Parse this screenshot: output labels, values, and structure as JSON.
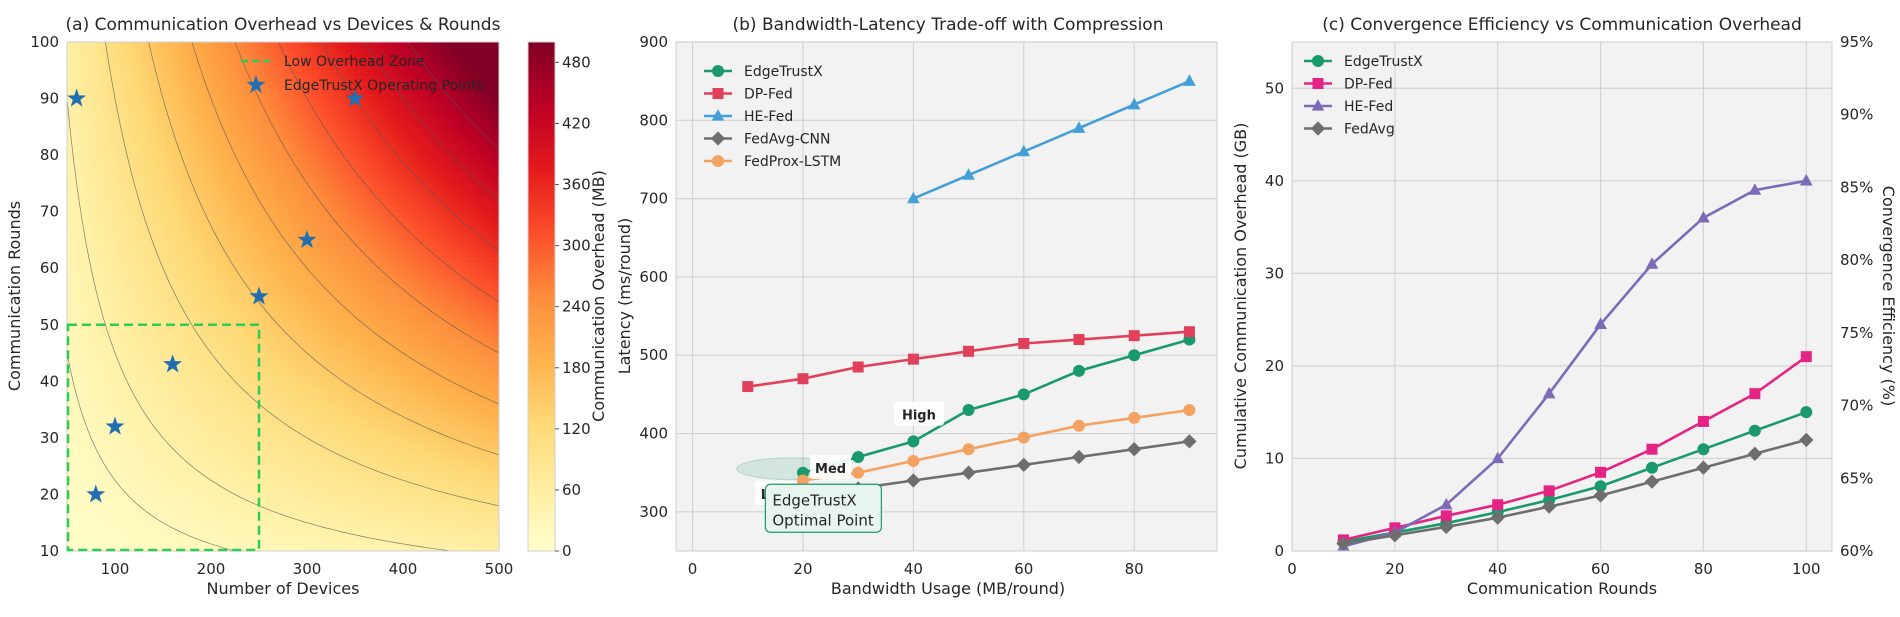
{
  "chart_data": [
    {
      "type": "heatmap",
      "title": "(a) Communication Overhead vs Devices & Rounds",
      "xlabel": "Number of Devices",
      "ylabel": "Communication Rounds",
      "xlim": [
        50,
        500
      ],
      "ylim": [
        10,
        100
      ],
      "xticks": [
        100,
        200,
        300,
        400,
        500
      ],
      "yticks": [
        10,
        20,
        30,
        40,
        50,
        60,
        70,
        80,
        90,
        100
      ],
      "colorbar": {
        "label": "Communication Overhead (MB)",
        "range": [
          0,
          500
        ],
        "ticks": [
          0,
          60,
          120,
          180,
          240,
          300,
          360,
          420,
          480
        ],
        "colormap": "YlOrRd"
      },
      "contour_levels": [
        25,
        50,
        100,
        150,
        200,
        250,
        300,
        350,
        400,
        450
      ],
      "low_overhead_zone": {
        "label": "Low Overhead Zone",
        "x": [
          50,
          250
        ],
        "y": [
          10,
          50
        ],
        "color": "#2ecc55"
      },
      "operating_points": {
        "label": "EdgeTrustX Operating Points",
        "color": "#1f6fb2",
        "points": [
          [
            60,
            90
          ],
          [
            80,
            20
          ],
          [
            100,
            32
          ],
          [
            160,
            43
          ],
          [
            250,
            55
          ],
          [
            300,
            65
          ],
          [
            350,
            90
          ]
        ]
      },
      "grid": true,
      "legend_position": "top-right"
    },
    {
      "type": "line",
      "title": "(b) Bandwidth-Latency Trade-off with Compression",
      "xlabel": "Bandwidth Usage (MB/round)",
      "ylabel": "Latency (ms/round)",
      "xlim": [
        -3,
        95
      ],
      "ylim": [
        250,
        900
      ],
      "xticks": [
        0,
        20,
        40,
        60,
        80
      ],
      "yticks": [
        300,
        400,
        500,
        600,
        700,
        800,
        900
      ],
      "series": [
        {
          "name": "EdgeTrustX",
          "color": "#1a9a6c",
          "marker": "circle",
          "x": [
            20,
            30,
            40,
            50,
            60,
            70,
            80,
            90
          ],
          "y": [
            350,
            370,
            390,
            430,
            450,
            480,
            500,
            520
          ]
        },
        {
          "name": "DP-Fed",
          "color": "#e0405a",
          "marker": "square",
          "x": [
            10,
            20,
            30,
            40,
            50,
            60,
            70,
            80,
            90
          ],
          "y": [
            460,
            470,
            485,
            495,
            505,
            515,
            520,
            525,
            530
          ]
        },
        {
          "name": "HE-Fed",
          "color": "#449fd8",
          "marker": "triangle",
          "x": [
            40,
            50,
            60,
            70,
            80,
            90
          ],
          "y": [
            700,
            730,
            760,
            790,
            820,
            850
          ]
        },
        {
          "name": "FedAvg-CNN",
          "color": "#6e6e6e",
          "marker": "diamond",
          "x": [
            20,
            30,
            40,
            50,
            60,
            70,
            80,
            90
          ],
          "y": [
            320,
            330,
            340,
            350,
            360,
            370,
            380,
            390
          ]
        },
        {
          "name": "FedProx-LSTM",
          "color": "#f4a261",
          "marker": "circle",
          "x": [
            20,
            30,
            40,
            50,
            60,
            70,
            80,
            90
          ],
          "y": [
            340,
            350,
            365,
            380,
            395,
            410,
            420,
            430
          ]
        }
      ],
      "annotations": [
        {
          "text": "Low",
          "x": 15,
          "y": 323
        },
        {
          "text": "Med",
          "x": 25,
          "y": 356
        },
        {
          "text": "High",
          "x": 41,
          "y": 424
        },
        {
          "text": "EdgeTrustX\nOptimal Point",
          "x": 15,
          "y": 302
        }
      ],
      "optimal_ellipse": {
        "cx": 18,
        "cy": 355,
        "rx": 10,
        "ry": 14
      },
      "grid": true,
      "legend_position": "top-left"
    },
    {
      "type": "line",
      "title": "(c) Convergence Efficiency vs Communication Overhead",
      "xlabel": "Communication Rounds",
      "ylabel": "Cumulative Communication Overhead (GB)",
      "y2label": "Convergence Efficiency (%)",
      "xlim": [
        0,
        105
      ],
      "ylim": [
        0,
        55
      ],
      "y2lim": [
        60,
        95
      ],
      "xticks": [
        0,
        20,
        40,
        60,
        80,
        100
      ],
      "yticks": [
        0,
        10,
        20,
        30,
        40,
        50
      ],
      "y2ticks": [
        "60%",
        "65%",
        "70%",
        "75%",
        "80%",
        "85%",
        "90%",
        "95%"
      ],
      "y2tick_values": [
        60,
        65,
        70,
        75,
        80,
        85,
        90,
        95
      ],
      "series": [
        {
          "name": "EdgeTrustX",
          "color": "#1a9a6c",
          "marker": "circle",
          "x": [
            10,
            20,
            30,
            40,
            50,
            60,
            70,
            80,
            90,
            100
          ],
          "y": [
            1,
            2,
            3,
            4.2,
            5.5,
            7,
            9,
            11,
            13,
            15
          ]
        },
        {
          "name": "DP-Fed",
          "color": "#e52385",
          "marker": "square",
          "x": [
            10,
            20,
            30,
            40,
            50,
            60,
            70,
            80,
            90,
            100
          ],
          "y": [
            1.2,
            2.5,
            3.8,
            5,
            6.5,
            8.5,
            11,
            14,
            17,
            21
          ]
        },
        {
          "name": "HE-Fed",
          "color": "#7b6bb8",
          "marker": "triangle",
          "x": [
            10,
            20,
            30,
            40,
            50,
            60,
            70,
            80,
            90,
            100
          ],
          "y": [
            0.5,
            2,
            5,
            10,
            17,
            24.5,
            31,
            36,
            39,
            40
          ]
        },
        {
          "name": "FedAvg",
          "color": "#6e6e6e",
          "marker": "diamond",
          "x": [
            10,
            20,
            30,
            40,
            50,
            60,
            70,
            80,
            90,
            100
          ],
          "y": [
            0.8,
            1.7,
            2.6,
            3.6,
            4.8,
            6,
            7.5,
            9,
            10.5,
            12
          ]
        }
      ],
      "grid": true,
      "legend_position": "top-left"
    }
  ]
}
